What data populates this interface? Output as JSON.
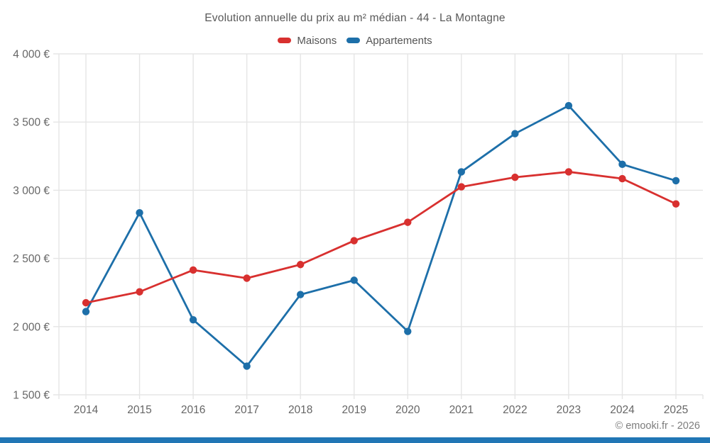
{
  "title": "Evolution annuelle du prix au m² médian - 44 - La Montagne",
  "legend": [
    {
      "label": "Maisons",
      "color": "#d8302f"
    },
    {
      "label": "Appartements",
      "color": "#1d6fa9"
    }
  ],
  "footer": {
    "credit": "© emooki.fr - 2026"
  },
  "colors": {
    "maisons": "#d8302f",
    "appartements": "#1d6fa9",
    "grid": "#e5e5e5",
    "tick_text": "#666666",
    "title_text": "#595959",
    "credit_text": "#7d7d7d",
    "brand_bar": "#2176b5",
    "background": "#ffffff"
  },
  "chart_data": {
    "type": "line",
    "title": "Evolution annuelle du prix au m² médian - 44 - La Montagne",
    "x": [
      2014,
      2015,
      2016,
      2017,
      2018,
      2019,
      2020,
      2021,
      2022,
      2023,
      2024,
      2025
    ],
    "series": [
      {
        "name": "Maisons",
        "color": "#d8302f",
        "values": [
          2175,
          2255,
          2415,
          2355,
          2455,
          2630,
          2765,
          3025,
          3095,
          3135,
          3085,
          2900
        ]
      },
      {
        "name": "Appartements",
        "color": "#1d6fa9",
        "values": [
          2110,
          2835,
          2050,
          1710,
          2235,
          2340,
          1965,
          3135,
          3415,
          3620,
          3190,
          3070
        ]
      }
    ],
    "xlabel": "",
    "ylabel": "",
    "ylim": [
      1500,
      4000
    ],
    "ytick_step": 500,
    "yticks": [
      "1 500 €",
      "2 000 €",
      "2 500 €",
      "3 000 €",
      "3 500 €",
      "4 000 €"
    ],
    "grid": true,
    "legend_position": "top",
    "marker": "circle",
    "unit": "€"
  }
}
